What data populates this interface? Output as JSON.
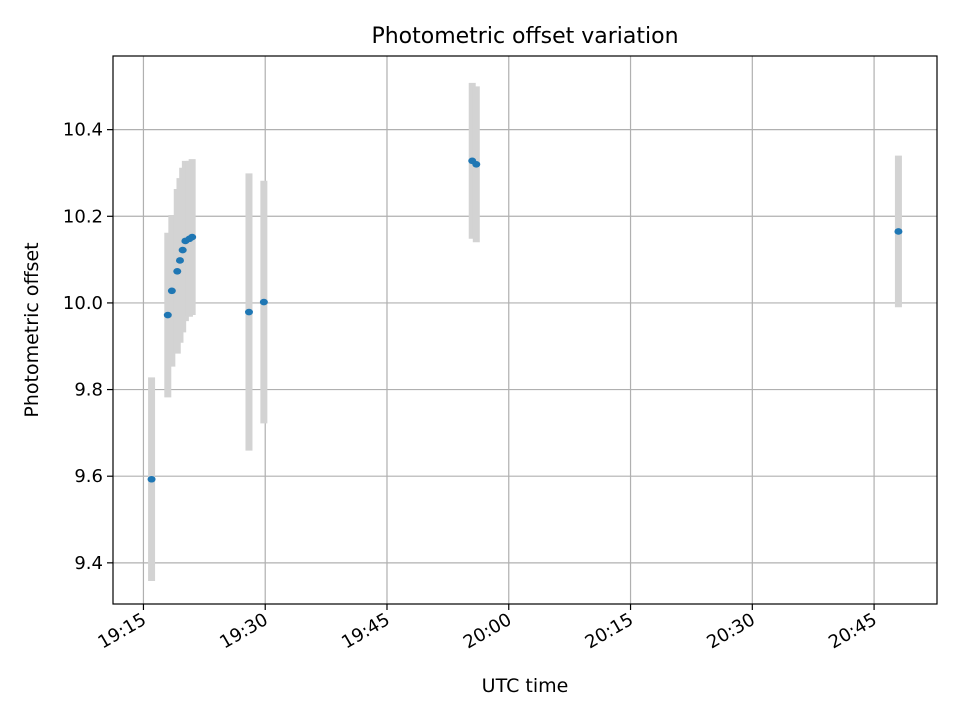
{
  "chart_data": {
    "type": "scatter",
    "title": "Photometric offset variation",
    "xlabel": "UTC time",
    "ylabel": "Photometric offset",
    "x_ticks": [
      "19:15",
      "19:30",
      "19:45",
      "20:00",
      "20:15",
      "20:30",
      "20:45"
    ],
    "y_ticks": [
      "9.4",
      "9.6",
      "9.8",
      "10.0",
      "10.2",
      "10.4"
    ],
    "xlim": [
      "19:11:15",
      "20:52:45"
    ],
    "ylim": [
      9.305,
      10.57
    ],
    "grid": true,
    "series": [
      {
        "marker_color": "#1f77b4",
        "errorbar_color": "#d3d3d3",
        "points": [
          {
            "x": "19:16",
            "y": 9.593,
            "yerr": 0.235
          },
          {
            "x": "19:18:00",
            "y": 9.972,
            "yerr": 0.19
          },
          {
            "x": "19:18:30",
            "y": 10.028,
            "yerr": 0.175
          },
          {
            "x": "19:19:10",
            "y": 10.073,
            "yerr": 0.19
          },
          {
            "x": "19:19:30",
            "y": 10.098,
            "yerr": 0.19
          },
          {
            "x": "19:19:50",
            "y": 10.122,
            "yerr": 0.19
          },
          {
            "x": "19:20:10",
            "y": 10.143,
            "yerr": 0.185
          },
          {
            "x": "19:20:40",
            "y": 10.148,
            "yerr": 0.18
          },
          {
            "x": "19:21:00",
            "y": 10.152,
            "yerr": 0.18
          },
          {
            "x": "19:28:00",
            "y": 9.979,
            "yerr": 0.32
          },
          {
            "x": "19:29:50",
            "y": 10.002,
            "yerr": 0.28
          },
          {
            "x": "19:55:30",
            "y": 10.328,
            "yerr": 0.18
          },
          {
            "x": "19:56:00",
            "y": 10.32,
            "yerr": 0.18
          },
          {
            "x": "20:48:00",
            "y": 10.165,
            "yerr": 0.175
          }
        ]
      }
    ]
  }
}
